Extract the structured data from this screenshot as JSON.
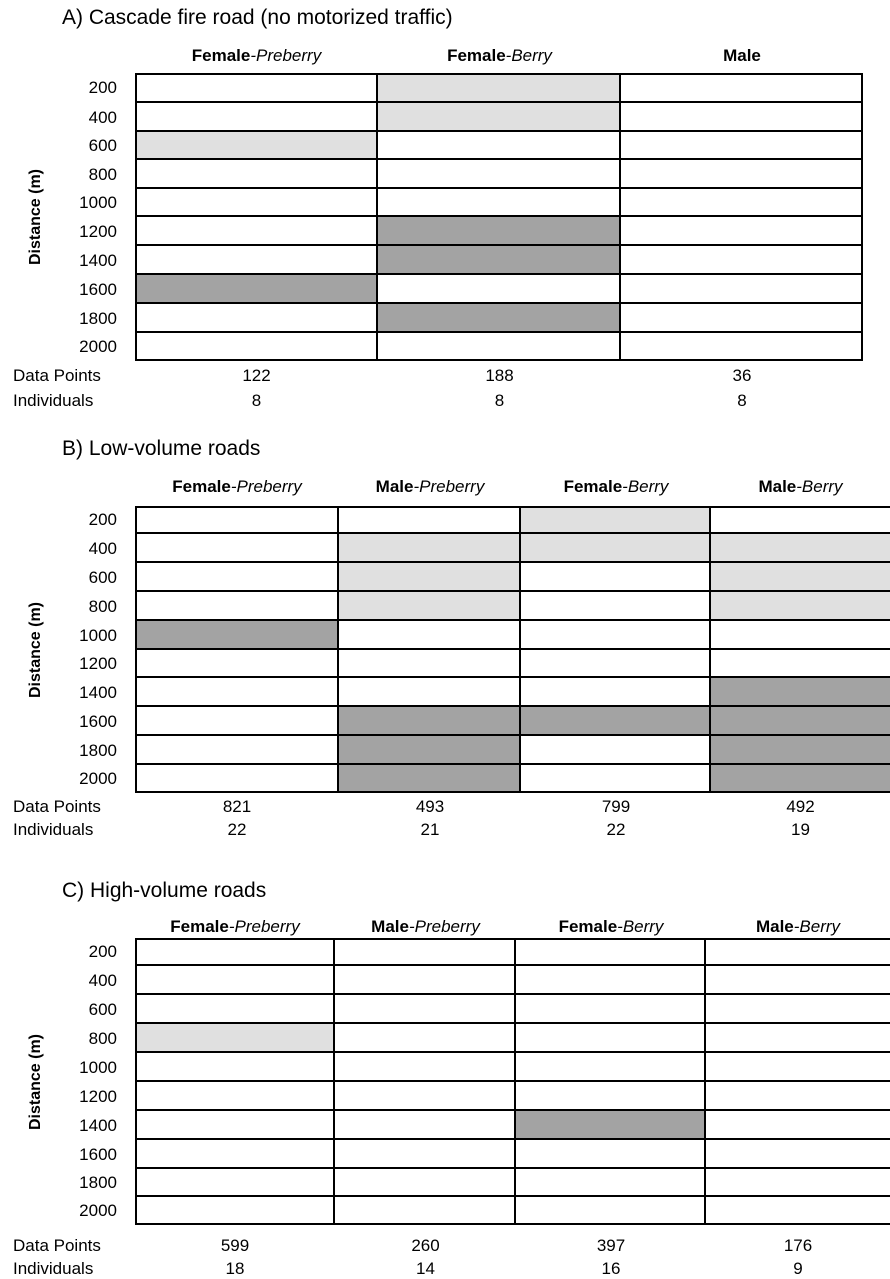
{
  "chart_data": [
    {
      "type": "table",
      "title": "A)  Cascade fire road (no motorized traffic)",
      "ylabel": "Distance (m)",
      "distances": [
        "200",
        "400",
        "600",
        "800",
        "1000",
        "1200",
        "1400",
        "1600",
        "1800",
        "2000"
      ],
      "columns": [
        {
          "bold": "Female",
          "italic": "-Preberry"
        },
        {
          "bold": "Female",
          "italic": "-Berry"
        },
        {
          "bold": "Male",
          "italic": ""
        }
      ],
      "shading": [
        [
          0,
          1,
          0
        ],
        [
          0,
          1,
          0
        ],
        [
          1,
          0,
          0
        ],
        [
          0,
          0,
          0
        ],
        [
          0,
          0,
          0
        ],
        [
          0,
          2,
          0
        ],
        [
          0,
          2,
          0
        ],
        [
          2,
          0,
          0
        ],
        [
          0,
          2,
          0
        ],
        [
          0,
          0,
          0
        ]
      ],
      "data_points_label": "Data Points",
      "individuals_label": "Individuals",
      "data_points": [
        "122",
        "188",
        "36"
      ],
      "individuals": [
        "8",
        "8",
        "8"
      ],
      "colors": {
        "light": "#e0e0e0",
        "dark": "#a3a3a3"
      }
    },
    {
      "type": "table",
      "title": "B) Low-volume roads",
      "ylabel": "Distance (m)",
      "distances": [
        "200",
        "400",
        "600",
        "800",
        "1000",
        "1200",
        "1400",
        "1600",
        "1800",
        "2000"
      ],
      "columns": [
        {
          "bold": "Female",
          "italic": "-Preberry"
        },
        {
          "bold": "Male",
          "italic": "-Preberry"
        },
        {
          "bold": "Female",
          "italic": "-Berry"
        },
        {
          "bold": "Male",
          "italic": "-Berry"
        }
      ],
      "shading": [
        [
          0,
          0,
          1,
          0
        ],
        [
          0,
          1,
          1,
          1
        ],
        [
          0,
          1,
          0,
          1
        ],
        [
          0,
          1,
          0,
          1
        ],
        [
          2,
          0,
          0,
          0
        ],
        [
          0,
          0,
          0,
          0
        ],
        [
          0,
          0,
          0,
          2
        ],
        [
          0,
          2,
          2,
          2
        ],
        [
          0,
          2,
          0,
          2
        ],
        [
          0,
          2,
          0,
          2
        ]
      ],
      "data_points_label": "Data Points",
      "individuals_label": "Individuals",
      "data_points": [
        "821",
        "493",
        "799",
        "492"
      ],
      "individuals": [
        "22",
        "21",
        "22",
        "19"
      ],
      "colors": {
        "light": "#e0e0e0",
        "dark": "#a3a3a3"
      }
    },
    {
      "type": "table",
      "title": "C) High-volume roads",
      "ylabel": "Distance (m)",
      "distances": [
        "200",
        "400",
        "600",
        "800",
        "1000",
        "1200",
        "1400",
        "1600",
        "1800",
        "2000"
      ],
      "columns": [
        {
          "bold": "Female",
          "italic": "-Preberry"
        },
        {
          "bold": "Male",
          "italic": "-Preberry"
        },
        {
          "bold": "Female",
          "italic": "-Berry"
        },
        {
          "bold": "Male",
          "italic": "-Berry"
        }
      ],
      "shading": [
        [
          0,
          0,
          0,
          0
        ],
        [
          0,
          0,
          0,
          0
        ],
        [
          0,
          0,
          0,
          0
        ],
        [
          1,
          0,
          0,
          0
        ],
        [
          0,
          0,
          0,
          0
        ],
        [
          0,
          0,
          0,
          0
        ],
        [
          0,
          0,
          2,
          0
        ],
        [
          0,
          0,
          0,
          0
        ],
        [
          0,
          0,
          0,
          0
        ],
        [
          0,
          0,
          0,
          0
        ]
      ],
      "data_points_label": "Data Points",
      "individuals_label": "Individuals",
      "data_points": [
        "599",
        "260",
        "397",
        "176"
      ],
      "individuals": [
        "18",
        "14",
        "16",
        "9"
      ],
      "colors": {
        "light": "#e0e0e0",
        "dark": "#a3a3a3"
      }
    }
  ]
}
